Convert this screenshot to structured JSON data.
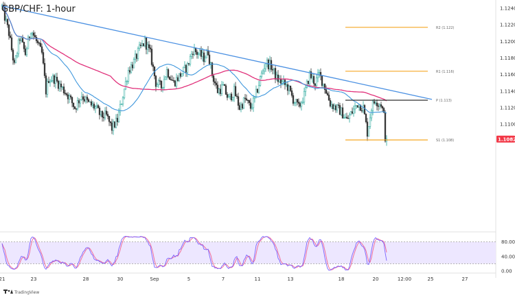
{
  "chart_data": {
    "type": "candlestick",
    "title": "GBP/CHF: 1-hour",
    "price_axis": {
      "ylim": [
        1.097,
        1.125
      ],
      "ticks": [
        {
          "value": 1.124,
          "label": "1.12400"
        },
        {
          "value": 1.122,
          "label": "1.12200"
        },
        {
          "value": 1.12,
          "label": "1.12000"
        },
        {
          "value": 1.118,
          "label": "1.11800"
        },
        {
          "value": 1.116,
          "label": "1.11600"
        },
        {
          "value": 1.114,
          "label": "1.11400"
        },
        {
          "value": 1.112,
          "label": "1.11200"
        },
        {
          "value": 1.11,
          "label": "1.11000"
        }
      ],
      "last_price": {
        "value": 1.1082,
        "label": "1.10821",
        "color": "#f23645"
      }
    },
    "x_axis": {
      "range": [
        0,
        32
      ],
      "ticks": [
        {
          "t": 0.0,
          "label": "21"
        },
        {
          "t": 2.3,
          "label": "23"
        },
        {
          "t": 6.1,
          "label": "28"
        },
        {
          "t": 8.6,
          "label": "30"
        },
        {
          "t": 11.1,
          "label": "Sep"
        },
        {
          "t": 13.6,
          "label": "5"
        },
        {
          "t": 16.1,
          "label": "7"
        },
        {
          "t": 18.6,
          "label": "11"
        },
        {
          "t": 21.0,
          "label": "13"
        },
        {
          "t": 24.7,
          "label": "18"
        },
        {
          "t": 27.2,
          "label": "20"
        },
        {
          "t": 29.3,
          "label": "12:00"
        },
        {
          "t": 31.2,
          "label": "25"
        },
        {
          "t": 33.7,
          "label": "27"
        }
      ]
    },
    "price_path": [
      [
        0.0,
        1.1242
      ],
      [
        0.5,
        1.121
      ],
      [
        0.9,
        1.117
      ],
      [
        1.3,
        1.1205
      ],
      [
        1.7,
        1.1185
      ],
      [
        2.1,
        1.1215
      ],
      [
        2.5,
        1.12
      ],
      [
        2.9,
        1.1185
      ],
      [
        3.2,
        1.114
      ],
      [
        3.4,
        1.1155
      ],
      [
        3.8,
        1.1155
      ],
      [
        4.3,
        1.1145
      ],
      [
        4.8,
        1.1135
      ],
      [
        5.3,
        1.112
      ],
      [
        5.8,
        1.1135
      ],
      [
        6.3,
        1.1125
      ],
      [
        6.8,
        1.112
      ],
      [
        7.2,
        1.111
      ],
      [
        7.6,
        1.111
      ],
      [
        8.0,
        1.1095
      ],
      [
        8.4,
        1.1105
      ],
      [
        8.8,
        1.1135
      ],
      [
        9.2,
        1.1165
      ],
      [
        9.6,
        1.1175
      ],
      [
        10.0,
        1.119
      ],
      [
        10.4,
        1.12
      ],
      [
        10.8,
        1.1185
      ],
      [
        11.2,
        1.115
      ],
      [
        11.6,
        1.1145
      ],
      [
        12.0,
        1.1165
      ],
      [
        12.5,
        1.115
      ],
      [
        13.0,
        1.116
      ],
      [
        13.5,
        1.117
      ],
      [
        13.9,
        1.119
      ],
      [
        14.3,
        1.1185
      ],
      [
        14.7,
        1.118
      ],
      [
        15.0,
        1.1188
      ],
      [
        15.3,
        1.116
      ],
      [
        15.7,
        1.114
      ],
      [
        16.1,
        1.1145
      ],
      [
        16.5,
        1.113
      ],
      [
        16.9,
        1.114
      ],
      [
        17.3,
        1.112
      ],
      [
        17.7,
        1.113
      ],
      [
        18.1,
        1.112
      ],
      [
        18.4,
        1.113
      ],
      [
        18.8,
        1.1155
      ],
      [
        19.2,
        1.1175
      ],
      [
        19.6,
        1.117
      ],
      [
        20.0,
        1.1155
      ],
      [
        20.4,
        1.115
      ],
      [
        20.8,
        1.1145
      ],
      [
        21.2,
        1.113
      ],
      [
        21.6,
        1.112
      ],
      [
        22.0,
        1.1135
      ],
      [
        22.4,
        1.116
      ],
      [
        22.8,
        1.115
      ],
      [
        23.1,
        1.116
      ],
      [
        23.5,
        1.1145
      ],
      [
        23.9,
        1.1125
      ],
      [
        24.3,
        1.112
      ],
      [
        24.7,
        1.1115
      ],
      [
        25.1,
        1.1105
      ],
      [
        25.5,
        1.1115
      ],
      [
        25.9,
        1.1125
      ],
      [
        26.3,
        1.112
      ],
      [
        26.6,
        1.109
      ],
      [
        26.9,
        1.112
      ],
      [
        27.2,
        1.113
      ],
      [
        27.4,
        1.1125
      ],
      [
        27.6,
        1.1125
      ],
      [
        27.8,
        1.111
      ],
      [
        27.9,
        1.1085
      ],
      [
        28.0,
        1.1082
      ]
    ],
    "overlays": [
      {
        "kind": "trendline",
        "color": "#4a90e2",
        "points": [
          [
            0.0,
            1.1243
          ],
          [
            31.3,
            1.113
          ]
        ]
      },
      {
        "kind": "sma-fast",
        "color": "#3d96dc"
      },
      {
        "kind": "sma-slow",
        "color": "#e0307a"
      }
    ],
    "pivot_levels": [
      {
        "name": "R2",
        "value": 1.1217,
        "label": "R2 (1.122)",
        "color": "#f5a623",
        "from": 25.0,
        "to": 31.0
      },
      {
        "name": "R1",
        "value": 1.1164,
        "label": "R1 (1.116)",
        "color": "#f5a623",
        "from": 25.0,
        "to": 31.0
      },
      {
        "name": "P",
        "value": 1.1129,
        "label": "P (1.113)",
        "color": "#1a1a1a",
        "from": 25.0,
        "to": 31.0
      },
      {
        "name": "S1",
        "value": 1.1081,
        "label": "S1 (1.108)",
        "color": "#f5a623",
        "from": 25.0,
        "to": 31.0
      }
    ],
    "oscillator": {
      "ylim": [
        0,
        100
      ],
      "ticks": [
        {
          "value": 80,
          "label": "80.00"
        },
        {
          "value": 40,
          "label": "40.00"
        },
        {
          "value": 0,
          "label": "0.00"
        }
      ],
      "levels": [
        80,
        20
      ],
      "colors": {
        "k": "#7b61ff",
        "d": "#f06292",
        "band": "#ede7ff"
      }
    },
    "grid": false
  },
  "branding": {
    "logo_icon": "tradingview-logo-icon",
    "logo_text": "TradingView"
  }
}
